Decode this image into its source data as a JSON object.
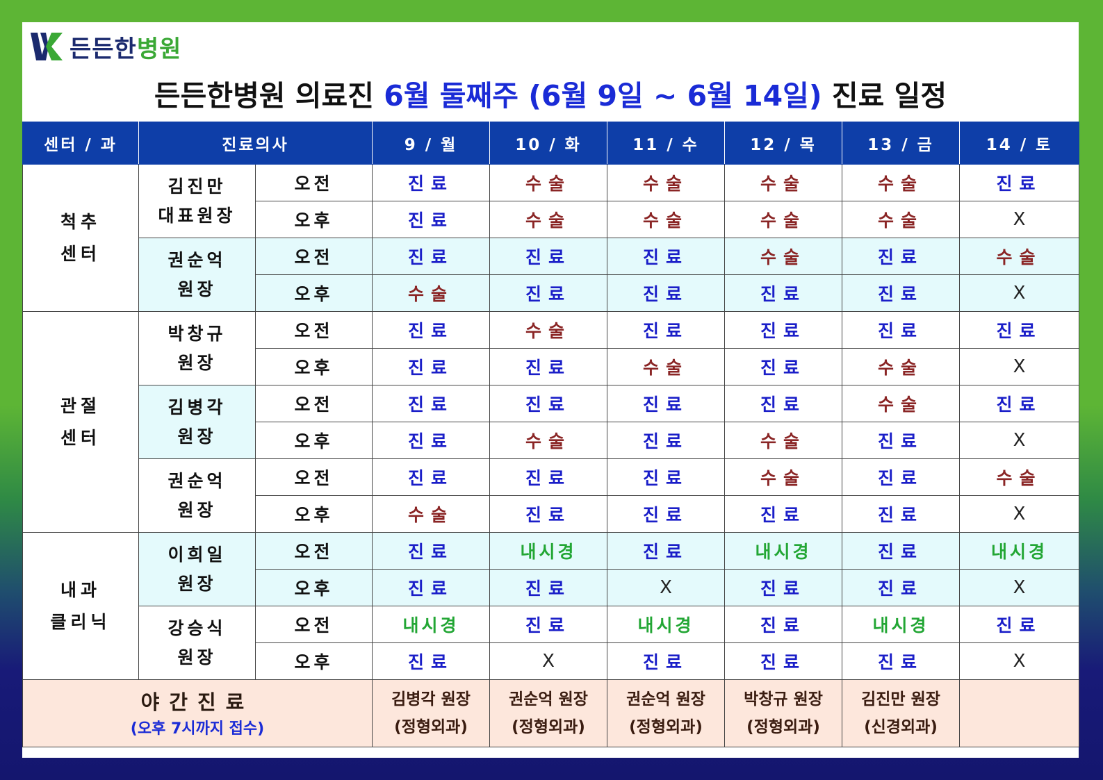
{
  "logo": {
    "icon": "hospital-logo-icon",
    "name_part1": "든든한",
    "name_part2": "병원"
  },
  "title": {
    "part1": "든든한병원 의료진 ",
    "part2": "6월 둘째주 (6월 9일 ~ 6월 14일)",
    "part3": " 진료 일정"
  },
  "columns": {
    "center": "센터 / 과",
    "doctor": "진료의사",
    "days": [
      "9 / 월",
      "10 / 화",
      "11 / 수",
      "12 / 목",
      "13 / 금",
      "14 / 토"
    ]
  },
  "ampm": {
    "am": "오전",
    "pm": "오후"
  },
  "centers": [
    {
      "line1": "척추",
      "line2": "센터"
    },
    {
      "line1": "관절",
      "line2": "센터"
    },
    {
      "line1": "내과",
      "line2": "클리닉"
    }
  ],
  "doctors": [
    {
      "line1": "김진만",
      "line2": "대표원장",
      "am": [
        "진료",
        "수술",
        "수술",
        "수술",
        "수술",
        "진료"
      ],
      "pm": [
        "진료",
        "수술",
        "수술",
        "수술",
        "수술",
        "X"
      ]
    },
    {
      "line1": "권순억",
      "line2": "원장",
      "am": [
        "진료",
        "진료",
        "진료",
        "수술",
        "진료",
        "수술"
      ],
      "pm": [
        "수술",
        "진료",
        "진료",
        "진료",
        "진료",
        "X"
      ]
    },
    {
      "line1": "박창규",
      "line2": "원장",
      "am": [
        "진료",
        "수술",
        "진료",
        "진료",
        "진료",
        "진료"
      ],
      "pm": [
        "진료",
        "진료",
        "수술",
        "진료",
        "수술",
        "X"
      ]
    },
    {
      "line1": "김병각",
      "line2": "원장",
      "am": [
        "진료",
        "진료",
        "진료",
        "진료",
        "수술",
        "진료"
      ],
      "pm": [
        "진료",
        "수술",
        "진료",
        "수술",
        "진료",
        "X"
      ]
    },
    {
      "line1": "권순억",
      "line2": "원장",
      "am": [
        "진료",
        "진료",
        "진료",
        "수술",
        "진료",
        "수술"
      ],
      "pm": [
        "수술",
        "진료",
        "진료",
        "진료",
        "진료",
        "X"
      ]
    },
    {
      "line1": "이희일",
      "line2": "원장",
      "am": [
        "진료",
        "내시경",
        "진료",
        "내시경",
        "진료",
        "내시경"
      ],
      "pm": [
        "진료",
        "진료",
        "X",
        "진료",
        "진료",
        "X"
      ]
    },
    {
      "line1": "강승식",
      "line2": "원장",
      "am": [
        "내시경",
        "진료",
        "내시경",
        "진료",
        "내시경",
        "진료"
      ],
      "pm": [
        "진료",
        "X",
        "진료",
        "진료",
        "진료",
        "X"
      ]
    }
  ],
  "night": {
    "title": "야간진료",
    "subtitle": "(오후 7시까지 접수)",
    "doctors": [
      {
        "name": "김병각 원장",
        "dept": "(정형외과)"
      },
      {
        "name": "권순억 원장",
        "dept": "(정형외과)"
      },
      {
        "name": "권순억 원장",
        "dept": "(정형외과)"
      },
      {
        "name": "박창규 원장",
        "dept": "(정형외과)"
      },
      {
        "name": "김진만 원장",
        "dept": "(신경외과)"
      },
      {
        "name": "",
        "dept": ""
      }
    ]
  },
  "colors": {
    "header_bg": "#0e3ea8",
    "clinic": "#1a1ec8",
    "surgery": "#8a2525",
    "endoscopy": "#22a634",
    "row_tint": "#e4fafc",
    "night_bg": "#fde7dc"
  }
}
